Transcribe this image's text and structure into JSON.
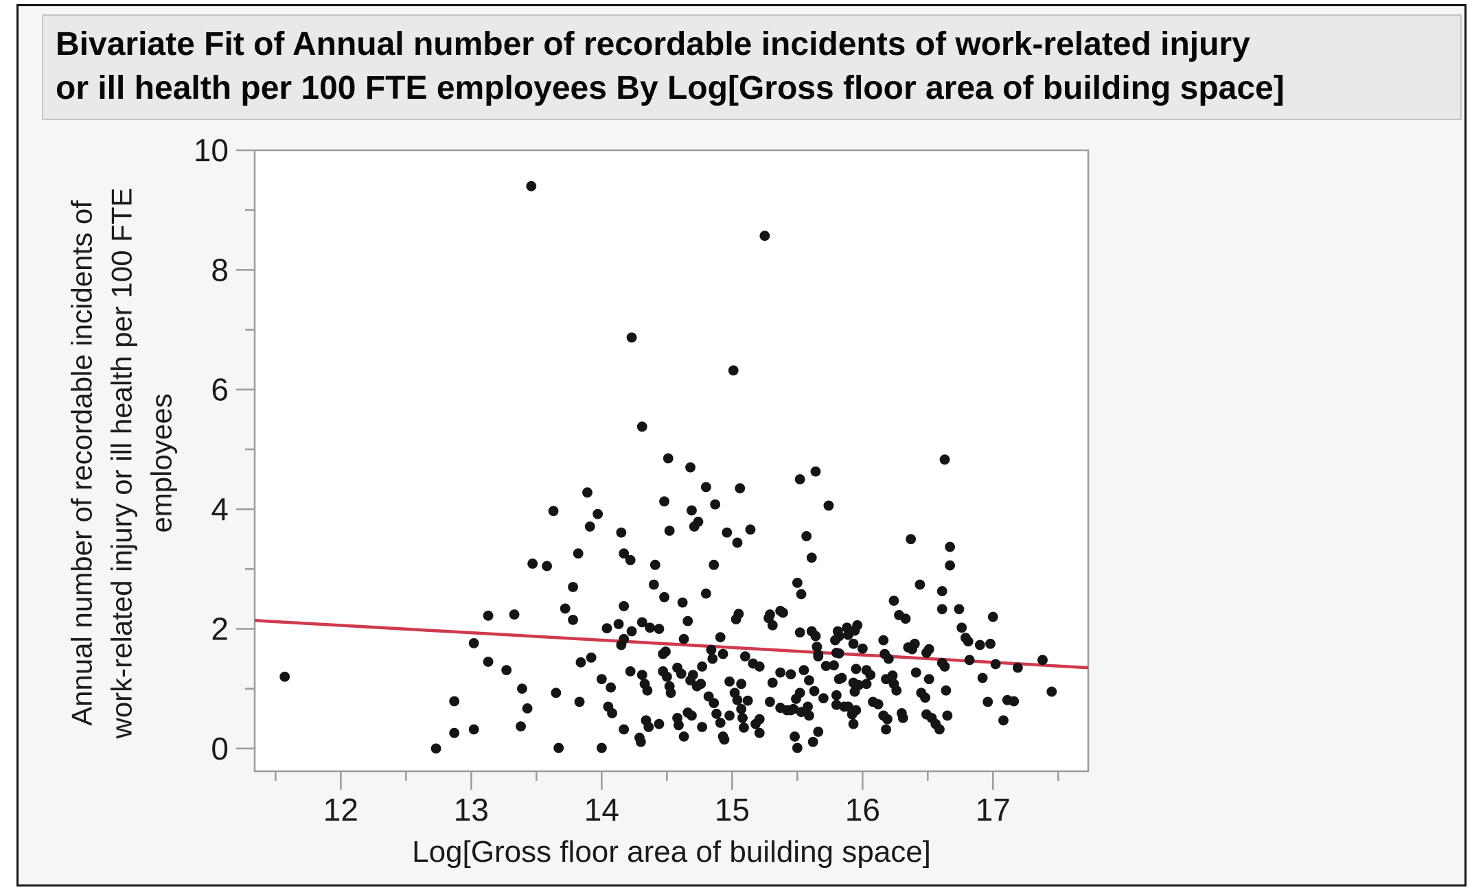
{
  "header": {
    "title_lines": [
      "Bivariate Fit of Annual number of recordable incidents of work-related injury",
      "or ill health per 100 FTE employees By Log[Gross floor area of building space]"
    ]
  },
  "chart_data": {
    "type": "scatter",
    "title": "Bivariate Fit of Annual number of recordable incidents of work-related injury or ill health per 100 FTE employees By Log[Gross floor area of building space]",
    "xlabel": "Log[Gross floor area of building space]",
    "ylabel": "Annual number of recordable incidents of work-related injury or ill health per 100 FTE employees",
    "ylabel_lines": [
      "Annual number of recordable incidents of",
      "work-related injury or ill health per 100 FTE",
      "employees"
    ],
    "xlim": [
      11.34,
      17.73
    ],
    "ylim": [
      -0.38,
      10
    ],
    "grid": false,
    "x_axis": {
      "major_ticks": [
        12,
        13,
        14,
        15,
        16,
        17
      ],
      "minor_ticks": [
        11.5,
        12.5,
        13.5,
        14.5,
        15.5,
        16.5,
        17.5
      ]
    },
    "y_axis": {
      "major_ticks": [
        0,
        2,
        4,
        6,
        8,
        10
      ],
      "minor_ticks": [
        1,
        3,
        5,
        7,
        9
      ]
    },
    "marker": {
      "color": "#151515",
      "radius": 7.4
    },
    "fit_line": {
      "x1": 11.34,
      "y1": 2.14,
      "x2": 17.73,
      "y2": 1.35,
      "color": "#d03a4c",
      "width": 4.5
    },
    "colors": {
      "frame": "#9b9b9b",
      "tick": "#9b9b9b",
      "tick_label": "#1a1a1a",
      "plot_bg": "#ffffff"
    },
    "points": [
      [
        13.46,
        9.4
      ],
      [
        15.25,
        8.57
      ],
      [
        14.23,
        6.87
      ],
      [
        15.01,
        6.32
      ],
      [
        14.31,
        5.38
      ],
      [
        14.51,
        4.85
      ],
      [
        14.68,
        4.7
      ],
      [
        16.63,
        4.83
      ],
      [
        15.52,
        4.5
      ],
      [
        15.64,
        4.63
      ],
      [
        13.89,
        4.28
      ],
      [
        14.8,
        4.37
      ],
      [
        15.06,
        4.35
      ],
      [
        15.74,
        4.06
      ],
      [
        13.63,
        3.97
      ],
      [
        14.48,
        4.13
      ],
      [
        14.87,
        4.08
      ],
      [
        14.69,
        3.98
      ],
      [
        14.74,
        3.79
      ],
      [
        13.97,
        3.92
      ],
      [
        13.91,
        3.71
      ],
      [
        14.15,
        3.61
      ],
      [
        14.52,
        3.64
      ],
      [
        14.71,
        3.71
      ],
      [
        14.96,
        3.61
      ],
      [
        15.14,
        3.66
      ],
      [
        15.04,
        3.44
      ],
      [
        15.57,
        3.55
      ],
      [
        15.61,
        3.19
      ],
      [
        13.82,
        3.26
      ],
      [
        14.17,
        3.26
      ],
      [
        14.22,
        3.15
      ],
      [
        14.41,
        3.07
      ],
      [
        14.86,
        3.07
      ],
      [
        13.58,
        3.05
      ],
      [
        13.47,
        3.09
      ],
      [
        13.78,
        2.7
      ],
      [
        14.4,
        2.74
      ],
      [
        14.48,
        2.53
      ],
      [
        14.62,
        2.44
      ],
      [
        14.8,
        2.59
      ],
      [
        13.72,
        2.34
      ],
      [
        14.17,
        2.38
      ],
      [
        15.5,
        2.77
      ],
      [
        15.53,
        2.58
      ],
      [
        16.37,
        3.5
      ],
      [
        16.67,
        3.37
      ],
      [
        16.67,
        3.06
      ],
      [
        16.44,
        2.74
      ],
      [
        16.61,
        2.63
      ],
      [
        16.24,
        2.47
      ],
      [
        16.61,
        2.33
      ],
      [
        16.74,
        2.33
      ],
      [
        16.28,
        2.23
      ],
      [
        16.33,
        2.17
      ],
      [
        17.0,
        2.2
      ],
      [
        13.13,
        2.22
      ],
      [
        13.33,
        2.24
      ],
      [
        11.57,
        1.2
      ],
      [
        13.02,
        1.76
      ],
      [
        13.13,
        1.45
      ],
      [
        13.27,
        1.31
      ],
      [
        13.39,
        1.0
      ],
      [
        12.87,
        0.79
      ],
      [
        13.43,
        0.67
      ],
      [
        12.87,
        0.26
      ],
      [
        13.02,
        0.32
      ],
      [
        13.38,
        0.37
      ],
      [
        12.73,
        0.0
      ],
      [
        13.78,
        2.15
      ],
      [
        14.04,
        2.01
      ],
      [
        14.13,
        2.08
      ],
      [
        14.17,
        1.83
      ],
      [
        14.15,
        1.73
      ],
      [
        14.23,
        1.96
      ],
      [
        14.31,
        2.11
      ],
      [
        14.37,
        2.02
      ],
      [
        14.44,
        2.0
      ],
      [
        14.47,
        1.58
      ],
      [
        14.49,
        1.62
      ],
      [
        14.63,
        1.83
      ],
      [
        14.66,
        2.13
      ],
      [
        14.7,
        1.23
      ],
      [
        14.77,
        1.37
      ],
      [
        14.84,
        1.65
      ],
      [
        14.85,
        1.5
      ],
      [
        14.91,
        1.86
      ],
      [
        14.93,
        1.58
      ],
      [
        15.03,
        2.16
      ],
      [
        15.28,
        2.18
      ],
      [
        15.31,
        2.06
      ],
      [
        15.52,
        1.94
      ],
      [
        15.61,
        1.96
      ],
      [
        15.64,
        1.88
      ],
      [
        15.65,
        1.7
      ],
      [
        15.66,
        1.57
      ],
      [
        15.1,
        1.54
      ],
      [
        15.16,
        1.42
      ],
      [
        15.21,
        1.37
      ],
      [
        13.84,
        1.44
      ],
      [
        13.92,
        1.52
      ],
      [
        14.0,
        1.16
      ],
      [
        14.07,
        1.02
      ],
      [
        14.22,
        1.29
      ],
      [
        14.31,
        1.23
      ],
      [
        14.33,
        1.08
      ],
      [
        14.35,
        0.97
      ],
      [
        14.47,
        1.29
      ],
      [
        14.5,
        1.2
      ],
      [
        14.52,
        1.04
      ],
      [
        14.53,
        0.93
      ],
      [
        14.58,
        1.35
      ],
      [
        14.61,
        1.25
      ],
      [
        14.68,
        1.14
      ],
      [
        14.73,
        1.04
      ],
      [
        14.76,
        1.08
      ],
      [
        13.65,
        0.93
      ],
      [
        13.83,
        0.78
      ],
      [
        14.05,
        0.7
      ],
      [
        14.08,
        0.59
      ],
      [
        14.17,
        0.32
      ],
      [
        14.3,
        0.11
      ],
      [
        14.29,
        0.18
      ],
      [
        14.34,
        0.47
      ],
      [
        14.36,
        0.36
      ],
      [
        14.44,
        0.41
      ],
      [
        14.58,
        0.51
      ],
      [
        14.59,
        0.39
      ],
      [
        14.63,
        0.2
      ],
      [
        14.66,
        0.6
      ],
      [
        14.69,
        0.55
      ],
      [
        14.77,
        0.36
      ],
      [
        14.82,
        0.87
      ],
      [
        14.86,
        0.76
      ],
      [
        14.88,
        0.58
      ],
      [
        14.91,
        0.43
      ],
      [
        14.93,
        0.2
      ],
      [
        14.94,
        0.15
      ],
      [
        15.02,
        0.93
      ],
      [
        15.04,
        0.81
      ],
      [
        15.07,
        0.66
      ],
      [
        15.08,
        0.51
      ],
      [
        15.09,
        0.35
      ],
      [
        15.18,
        0.41
      ],
      [
        15.21,
        0.26
      ],
      [
        15.37,
        0.68
      ],
      [
        15.42,
        0.64
      ],
      [
        15.47,
        0.66
      ],
      [
        15.49,
        0.83
      ],
      [
        15.52,
        0.93
      ],
      [
        15.58,
        0.7
      ],
      [
        15.48,
        0.2
      ],
      [
        15.5,
        0.01
      ],
      [
        15.62,
        0.11
      ],
      [
        15.66,
        0.28
      ],
      [
        13.67,
        0.01
      ],
      [
        14.0,
        0.01
      ],
      [
        14.98,
        1.12
      ],
      [
        15.07,
        1.08
      ],
      [
        15.05,
        2.25
      ],
      [
        15.29,
        2.24
      ],
      [
        15.37,
        2.3
      ],
      [
        15.39,
        2.27
      ],
      [
        15.45,
        1.24
      ],
      [
        15.37,
        1.27
      ],
      [
        15.55,
        1.31
      ],
      [
        15.59,
        1.14
      ],
      [
        15.63,
        0.96
      ],
      [
        15.72,
        1.38
      ],
      [
        15.82,
        1.16
      ],
      [
        15.93,
        1.1
      ],
      [
        15.31,
        1.1
      ],
      [
        15.29,
        0.78
      ],
      [
        15.12,
        0.8
      ],
      [
        15.53,
        0.61
      ],
      [
        15.45,
        0.64
      ],
      [
        15.59,
        0.55
      ],
      [
        15.7,
        0.84
      ],
      [
        15.8,
        0.73
      ],
      [
        15.86,
        0.7
      ],
      [
        15.95,
        0.64
      ],
      [
        14.98,
        0.55
      ],
      [
        15.21,
        0.49
      ],
      [
        15.79,
        1.81
      ],
      [
        15.82,
        1.88
      ],
      [
        15.89,
        1.9
      ],
      [
        15.94,
        1.97
      ],
      [
        15.82,
        1.59
      ],
      [
        15.93,
        1.75
      ],
      [
        16.0,
        1.67
      ],
      [
        15.66,
        1.54
      ],
      [
        15.81,
        1.96
      ],
      [
        15.88,
        2.02
      ],
      [
        15.96,
        2.06
      ],
      [
        15.8,
        1.6
      ],
      [
        15.78,
        1.39
      ],
      [
        15.84,
        1.18
      ],
      [
        15.95,
        1.33
      ],
      [
        16.03,
        1.31
      ],
      [
        16.06,
        1.23
      ],
      [
        15.97,
        1.06
      ],
      [
        16.03,
        1.08
      ],
      [
        15.94,
        0.95
      ],
      [
        15.8,
        0.89
      ],
      [
        15.89,
        0.7
      ],
      [
        15.92,
        0.57
      ],
      [
        16.08,
        0.78
      ],
      [
        16.12,
        0.74
      ],
      [
        15.93,
        0.41
      ],
      [
        16.16,
        1.81
      ],
      [
        16.17,
        1.58
      ],
      [
        16.2,
        1.5
      ],
      [
        16.18,
        1.16
      ],
      [
        16.23,
        1.22
      ],
      [
        16.24,
        1.08
      ],
      [
        16.26,
        0.97
      ],
      [
        16.16,
        0.55
      ],
      [
        16.19,
        0.49
      ],
      [
        16.18,
        0.32
      ],
      [
        16.3,
        0.59
      ],
      [
        16.31,
        0.51
      ],
      [
        16.35,
        1.69
      ],
      [
        16.38,
        1.66
      ],
      [
        16.4,
        1.75
      ],
      [
        16.49,
        1.6
      ],
      [
        16.51,
        1.66
      ],
      [
        16.41,
        1.27
      ],
      [
        16.51,
        1.16
      ],
      [
        16.45,
        0.93
      ],
      [
        16.48,
        0.85
      ],
      [
        16.49,
        0.57
      ],
      [
        16.53,
        0.51
      ],
      [
        16.56,
        0.41
      ],
      [
        16.59,
        0.32
      ],
      [
        16.61,
        1.43
      ],
      [
        16.63,
        1.37
      ],
      [
        16.64,
        0.97
      ],
      [
        16.65,
        0.55
      ],
      [
        16.76,
        2.02
      ],
      [
        16.79,
        1.85
      ],
      [
        16.81,
        1.79
      ],
      [
        16.82,
        1.48
      ],
      [
        16.9,
        1.73
      ],
      [
        16.98,
        1.75
      ],
      [
        16.92,
        1.18
      ],
      [
        16.96,
        0.78
      ],
      [
        17.02,
        1.41
      ],
      [
        17.08,
        0.47
      ],
      [
        17.11,
        0.81
      ],
      [
        17.16,
        0.79
      ],
      [
        17.19,
        1.35
      ],
      [
        17.38,
        1.48
      ],
      [
        17.45,
        0.95
      ]
    ]
  }
}
